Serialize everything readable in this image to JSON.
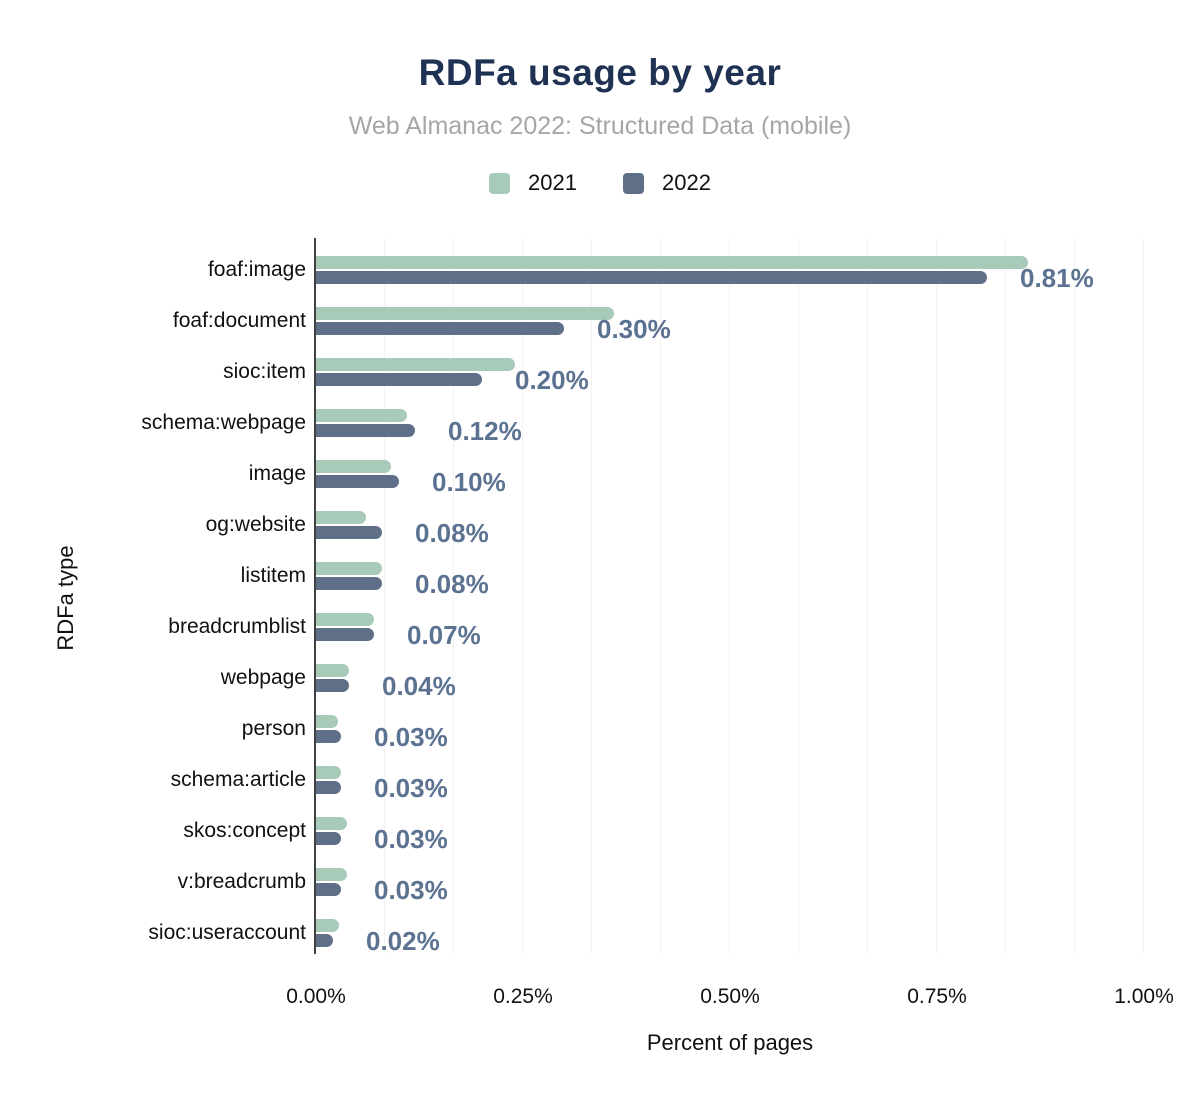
{
  "header": {
    "title": "RDFa usage by year",
    "subtitle": "Web Almanac 2022: Structured Data (mobile)"
  },
  "legend": [
    {
      "label": "2021",
      "color": "#a8cab8"
    },
    {
      "label": "2022",
      "color": "#606f88"
    }
  ],
  "axes": {
    "xlabel": "Percent of pages",
    "ylabel": "RDFa type",
    "xticks": [
      "0.00%",
      "0.25%",
      "0.50%",
      "0.75%",
      "1.00%"
    ]
  },
  "colors": {
    "title": "#1f3253",
    "subtitle": "#a6a6a6",
    "series_2021": "#a8cab8",
    "series_2022": "#606f88",
    "value_label": "#5b7291",
    "axis_line": "#424242",
    "gridline": "#f2f2f2"
  },
  "chart_data": {
    "type": "bar",
    "orientation": "horizontal",
    "title": "RDFa usage by year",
    "subtitle": "Web Almanac 2022: Structured Data (mobile)",
    "xlabel": "Percent of pages",
    "ylabel": "RDFa type",
    "xlim": [
      0,
      1.0
    ],
    "xticks_percent": [
      0.0,
      0.25,
      0.5,
      0.75,
      1.0
    ],
    "xtick_labels": [
      "0.00%",
      "0.25%",
      "0.50%",
      "0.75%",
      "1.00%"
    ],
    "grid": "vertical minor gridlines every 0.0833%",
    "legend_position": "top-center",
    "categories": [
      "foaf:image",
      "foaf:document",
      "sioc:item",
      "schema:webpage",
      "image",
      "og:website",
      "listitem",
      "breadcrumblist",
      "webpage",
      "person",
      "schema:article",
      "skos:concept",
      "v:breadcrumb",
      "sioc:useraccount"
    ],
    "series": [
      {
        "name": "2021",
        "color": "#a8cab8",
        "values": [
          0.86,
          0.36,
          0.24,
          0.11,
          0.09,
          0.06,
          0.08,
          0.07,
          0.04,
          0.027,
          0.03,
          0.037,
          0.037,
          0.028
        ]
      },
      {
        "name": "2022",
        "color": "#606f88",
        "values": [
          0.81,
          0.3,
          0.2,
          0.12,
          0.1,
          0.08,
          0.08,
          0.07,
          0.04,
          0.03,
          0.03,
          0.03,
          0.03,
          0.02
        ]
      }
    ],
    "data_labels": [
      "0.81%",
      "0.30%",
      "0.20%",
      "0.12%",
      "0.10%",
      "0.08%",
      "0.08%",
      "0.07%",
      "0.04%",
      "0.03%",
      "0.03%",
      "0.03%",
      "0.03%",
      "0.02%"
    ],
    "data_labels_series": "2022"
  }
}
